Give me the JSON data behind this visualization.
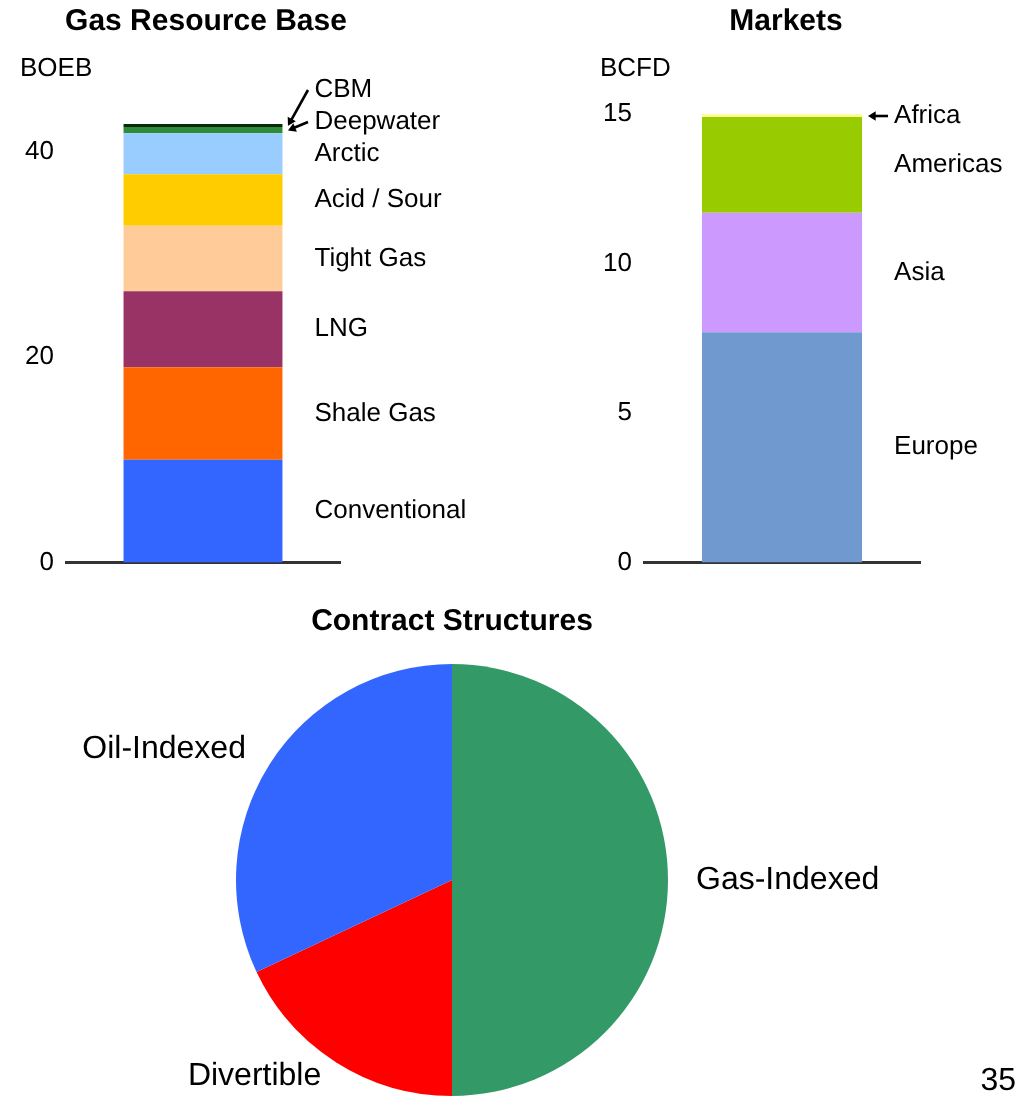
{
  "chart_data": [
    {
      "type": "bar",
      "title": "Gas Resource Base",
      "ylabel": "BOEB",
      "categories": [
        null
      ],
      "stacked": true,
      "ylim": [
        0,
        42.7
      ],
      "yticks": [
        0,
        20,
        40
      ],
      "series": [
        {
          "name": "Conventional",
          "color": "#3366ff",
          "values": [
            10
          ]
        },
        {
          "name": "Shale Gas",
          "color": "#ff6600",
          "values": [
            9
          ]
        },
        {
          "name": "LNG",
          "color": "#993366",
          "values": [
            7.4
          ]
        },
        {
          "name": "Tight Gas",
          "color": "#ffcc99",
          "values": [
            6.4
          ]
        },
        {
          "name": "Acid / Sour",
          "color": "#ffcc00",
          "values": [
            5
          ]
        },
        {
          "name": "Arctic",
          "color": "#99ccff",
          "values": [
            4
          ]
        },
        {
          "name": "Deepwater",
          "color": "#2e8b3a",
          "values": [
            0.6
          ]
        },
        {
          "name": "CBM",
          "color": "#0a2a0a",
          "values": [
            0.3
          ]
        }
      ]
    },
    {
      "type": "bar",
      "title": "Markets",
      "ylabel": "BCFD",
      "categories": [
        null
      ],
      "stacked": true,
      "ylim": [
        0,
        15
      ],
      "yticks": [
        0,
        5,
        10,
        15
      ],
      "series": [
        {
          "name": "Europe",
          "color": "#7099d0",
          "values": [
            7.7
          ]
        },
        {
          "name": "Asia",
          "color": "#cc99ff",
          "values": [
            4
          ]
        },
        {
          "name": "Americas",
          "color": "#99cc00",
          "values": [
            3.2
          ]
        },
        {
          "name": "Africa",
          "color": "#ffff99",
          "values": [
            0.1
          ]
        }
      ]
    },
    {
      "type": "pie",
      "title": "Contract Structures",
      "categories": [
        "Gas-Indexed",
        "Divertible",
        "Oil-Indexed"
      ],
      "values": [
        50,
        18,
        32
      ],
      "colors": [
        "#339966",
        "#ff0000",
        "#3366ff"
      ],
      "annotations": [
        "35"
      ]
    }
  ]
}
